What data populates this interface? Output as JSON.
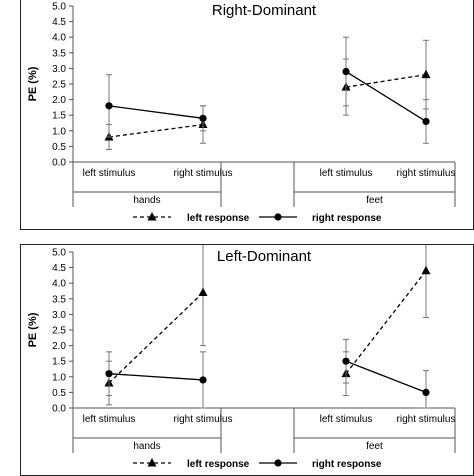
{
  "chart_data": [
    {
      "type": "line",
      "title": "Right-Dominant",
      "ylabel": "PE (%)",
      "ylim": [
        0,
        5
      ],
      "yticks": [
        "0.0",
        "0.5",
        "1.0",
        "1.5",
        "2.0",
        "2.5",
        "3.0",
        "3.5",
        "4.0",
        "4.5",
        "5.0"
      ],
      "groups": [
        {
          "label": "hands",
          "categories": [
            "left stimulus",
            "right stimulus"
          ]
        },
        {
          "label": "feet",
          "categories": [
            "left stimulus",
            "right stimulus"
          ]
        }
      ],
      "series": [
        {
          "name": "left response",
          "marker": "triangle",
          "dash": true,
          "values": [
            [
              0.8,
              1.2
            ],
            [
              2.4,
              2.8
            ]
          ],
          "errors": [
            [
              0.4,
              0.6
            ],
            [
              0.9,
              1.1
            ]
          ]
        },
        {
          "name": "right response",
          "marker": "circle",
          "dash": false,
          "values": [
            [
              1.8,
              1.4
            ],
            [
              2.9,
              1.3
            ]
          ],
          "errors": [
            [
              1.0,
              0.4
            ],
            [
              1.1,
              0.7
            ]
          ]
        }
      ],
      "grid": false,
      "legend": "bottom"
    },
    {
      "type": "line",
      "title": "Left-Dominant",
      "ylabel": "PE (%)",
      "ylim": [
        0,
        5
      ],
      "yticks": [
        "0.0",
        "0.5",
        "1.0",
        "1.5",
        "2.0",
        "2.5",
        "3.0",
        "3.5",
        "4.0",
        "4.5",
        "5.0"
      ],
      "groups": [
        {
          "label": "hands",
          "categories": [
            "left stimulus",
            "right stimulus"
          ]
        },
        {
          "label": "feet",
          "categories": [
            "left stimulus",
            "right stimulus"
          ]
        }
      ],
      "series": [
        {
          "name": "left response",
          "marker": "triangle",
          "dash": true,
          "values": [
            [
              0.8,
              3.7
            ],
            [
              1.1,
              4.4
            ]
          ],
          "errors": [
            [
              0.7,
              1.7
            ],
            [
              0.7,
              1.5
            ]
          ]
        },
        {
          "name": "right response",
          "marker": "circle",
          "dash": false,
          "values": [
            [
              1.1,
              0.9
            ],
            [
              1.5,
              0.5
            ]
          ],
          "errors": [
            [
              0.7,
              0.9
            ],
            [
              0.7,
              0.7
            ]
          ]
        }
      ],
      "grid": false,
      "legend": "bottom"
    }
  ]
}
